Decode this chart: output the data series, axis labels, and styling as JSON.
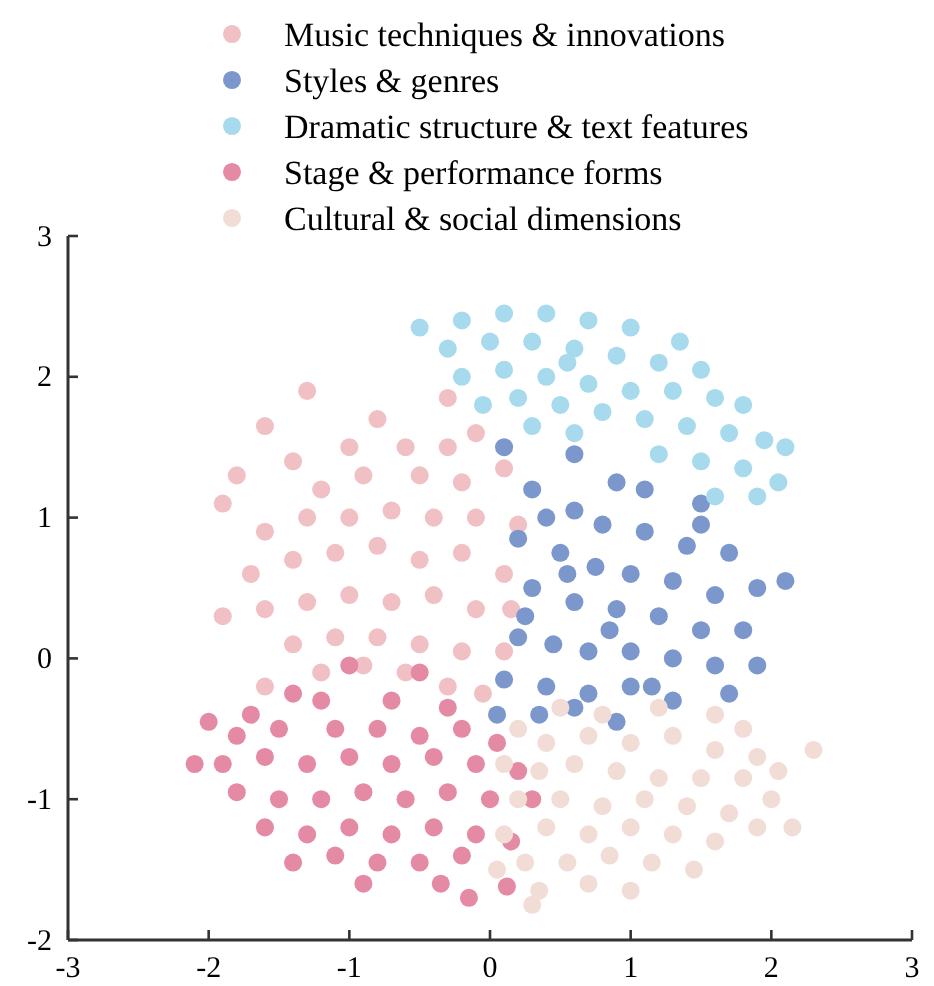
{
  "chart_data": {
    "type": "scatter",
    "xlim": [
      -3,
      3
    ],
    "ylim": [
      -2,
      3
    ],
    "xticks": [
      -3,
      -2,
      -1,
      0,
      1,
      2,
      3
    ],
    "yticks": [
      -2,
      -1,
      0,
      1,
      2,
      3
    ],
    "legend": "top",
    "marker": "circle",
    "grid": false,
    "series": [
      {
        "name": "Music techniques & innovations",
        "color": "#f0c0c4",
        "x": [
          -1.3,
          -0.3,
          -1.6,
          -0.8,
          -1.0,
          -0.6,
          -0.3,
          -0.1,
          -1.4,
          -1.2,
          -0.9,
          -0.5,
          -0.2,
          0.1,
          -1.8,
          -1.9,
          -1.6,
          -1.3,
          -1.0,
          -0.7,
          -0.4,
          -0.1,
          0.2,
          -1.7,
          -1.4,
          -1.1,
          -0.8,
          -0.5,
          -0.2,
          0.1,
          -1.9,
          -1.6,
          -1.3,
          -1.0,
          -0.7,
          -0.4,
          -0.1,
          0.15,
          -1.4,
          -1.1,
          -0.8,
          -0.5,
          -0.2,
          0.1,
          -1.2,
          -0.9,
          -0.6,
          -0.3,
          -0.05,
          -1.6
        ],
        "values": [
          1.9,
          1.85,
          1.65,
          1.7,
          1.5,
          1.5,
          1.5,
          1.6,
          1.4,
          1.2,
          1.3,
          1.3,
          1.25,
          1.35,
          1.3,
          1.1,
          0.9,
          1.0,
          1.0,
          1.05,
          1.0,
          1.0,
          0.95,
          0.6,
          0.7,
          0.75,
          0.8,
          0.7,
          0.75,
          0.6,
          0.3,
          0.35,
          0.4,
          0.45,
          0.4,
          0.45,
          0.35,
          0.35,
          0.1,
          0.15,
          0.15,
          0.1,
          0.05,
          0.05,
          -0.1,
          -0.05,
          -0.1,
          -0.2,
          -0.25,
          -0.2
        ]
      },
      {
        "name": "Styles & genres",
        "color": "#7b97cc",
        "x": [
          0.1,
          0.6,
          0.9,
          1.5,
          0.3,
          0.6,
          0.8,
          1.1,
          1.4,
          1.7,
          0.2,
          0.5,
          0.75,
          1.0,
          1.3,
          1.6,
          1.9,
          2.1,
          0.3,
          0.6,
          0.9,
          1.2,
          1.5,
          1.8,
          0.2,
          0.45,
          0.7,
          1.0,
          1.3,
          1.6,
          1.9,
          0.1,
          0.4,
          0.7,
          1.0,
          1.3,
          1.7,
          0.05,
          0.35,
          0.6,
          0.9,
          1.15,
          0.25,
          0.55,
          1.1,
          0.4,
          1.5,
          0.85
        ],
        "values": [
          1.5,
          1.45,
          1.25,
          1.1,
          1.2,
          1.05,
          0.95,
          0.9,
          0.8,
          0.75,
          0.85,
          0.75,
          0.65,
          0.6,
          0.55,
          0.45,
          0.5,
          0.55,
          0.5,
          0.4,
          0.35,
          0.3,
          0.2,
          0.2,
          0.15,
          0.1,
          0.05,
          0.05,
          0.0,
          -0.05,
          -0.05,
          -0.15,
          -0.2,
          -0.25,
          -0.2,
          -0.3,
          -0.25,
          -0.4,
          -0.4,
          -0.35,
          -0.45,
          -0.2,
          0.3,
          0.6,
          1.2,
          1.0,
          0.95,
          0.2
        ]
      },
      {
        "name": "Dramatic structure & text features",
        "color": "#a8daee",
        "x": [
          -0.5,
          -0.2,
          0.1,
          0.4,
          0.7,
          1.0,
          -0.3,
          0.0,
          0.3,
          0.6,
          0.9,
          1.2,
          1.5,
          -0.2,
          0.1,
          0.4,
          0.7,
          1.0,
          1.3,
          1.6,
          1.8,
          0.2,
          0.5,
          0.8,
          1.1,
          1.4,
          1.7,
          1.95,
          2.1,
          0.3,
          0.6,
          1.2,
          1.5,
          1.8,
          2.05,
          1.6,
          1.9,
          -0.05,
          0.55,
          1.35
        ],
        "values": [
          2.35,
          2.4,
          2.45,
          2.45,
          2.4,
          2.35,
          2.2,
          2.25,
          2.25,
          2.2,
          2.15,
          2.1,
          2.05,
          2.0,
          2.05,
          2.0,
          1.95,
          1.9,
          1.9,
          1.85,
          1.8,
          1.85,
          1.8,
          1.75,
          1.7,
          1.65,
          1.6,
          1.55,
          1.5,
          1.65,
          1.6,
          1.45,
          1.4,
          1.35,
          1.25,
          1.15,
          1.15,
          1.8,
          2.1,
          2.25
        ]
      },
      {
        "name": "Stage & performance forms",
        "color": "#e48aa4",
        "x": [
          -1.0,
          -0.5,
          -1.4,
          -1.2,
          -0.7,
          -0.3,
          -1.7,
          -1.5,
          -1.1,
          -0.8,
          -0.5,
          -0.2,
          0.05,
          -2.0,
          -1.9,
          -1.6,
          -1.3,
          -1.0,
          -0.7,
          -0.4,
          -0.1,
          0.2,
          -1.8,
          -1.5,
          -1.2,
          -0.9,
          -0.6,
          -0.3,
          0.0,
          0.3,
          -2.1,
          -1.6,
          -1.3,
          -1.0,
          -0.7,
          -0.4,
          -0.1,
          0.15,
          -1.4,
          -1.1,
          -0.8,
          -0.5,
          -0.2,
          -0.9,
          -0.35,
          -0.15,
          0.12,
          -1.8
        ],
        "values": [
          -0.05,
          -0.1,
          -0.25,
          -0.3,
          -0.3,
          -0.35,
          -0.4,
          -0.5,
          -0.5,
          -0.5,
          -0.55,
          -0.5,
          -0.6,
          -0.45,
          -0.75,
          -0.7,
          -0.75,
          -0.7,
          -0.75,
          -0.7,
          -0.75,
          -0.8,
          -0.95,
          -1.0,
          -1.0,
          -0.95,
          -1.0,
          -0.95,
          -1.0,
          -1.0,
          -0.75,
          -1.2,
          -1.25,
          -1.2,
          -1.25,
          -1.2,
          -1.25,
          -1.3,
          -1.45,
          -1.4,
          -1.45,
          -1.45,
          -1.4,
          -1.6,
          -1.6,
          -1.7,
          -1.62,
          -0.55
        ]
      },
      {
        "name": "Cultural & social dimensions",
        "color": "#f2dcd6",
        "x": [
          0.5,
          0.8,
          1.2,
          1.6,
          1.8,
          0.2,
          0.4,
          0.7,
          1.0,
          1.3,
          1.6,
          1.9,
          0.1,
          0.35,
          0.6,
          0.9,
          1.2,
          1.5,
          1.8,
          2.05,
          0.2,
          0.5,
          0.8,
          1.1,
          1.4,
          1.7,
          2.0,
          2.3,
          0.1,
          0.4,
          0.7,
          1.0,
          1.3,
          1.6,
          1.9,
          0.25,
          0.55,
          0.85,
          1.15,
          1.45,
          0.05,
          0.35,
          0.7,
          1.0,
          0.3,
          2.15
        ],
        "values": [
          -0.35,
          -0.4,
          -0.35,
          -0.4,
          -0.5,
          -0.5,
          -0.6,
          -0.55,
          -0.6,
          -0.55,
          -0.65,
          -0.7,
          -0.75,
          -0.8,
          -0.75,
          -0.8,
          -0.85,
          -0.85,
          -0.85,
          -0.8,
          -1.0,
          -1.0,
          -1.05,
          -1.0,
          -1.05,
          -1.1,
          -1.0,
          -0.65,
          -1.25,
          -1.2,
          -1.25,
          -1.2,
          -1.25,
          -1.3,
          -1.2,
          -1.45,
          -1.45,
          -1.4,
          -1.45,
          -1.5,
          -1.5,
          -1.65,
          -1.6,
          -1.65,
          -1.75,
          -1.2
        ]
      }
    ]
  }
}
